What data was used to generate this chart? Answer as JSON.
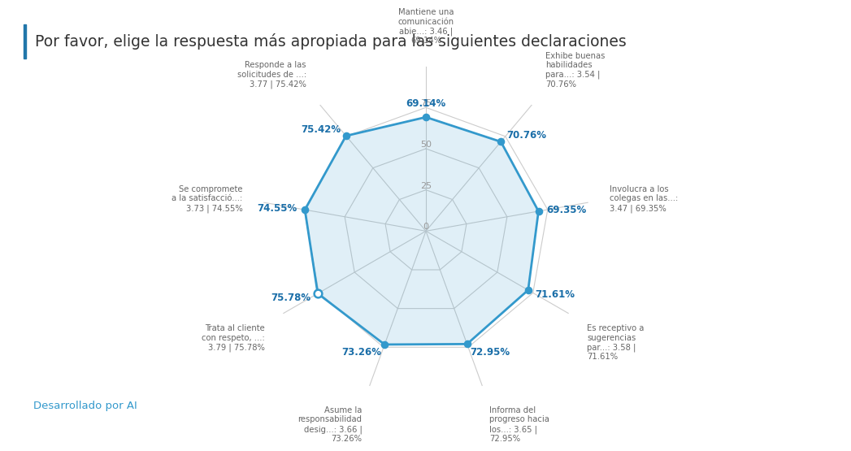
{
  "title": "Por favor, elige la respuesta más apropiada para las siguientes declaraciones",
  "categories": [
    "Mantiene una\ncomunicación\nabie...: 3.46 |\n69.14%",
    "Exhibe buenas\nhabilidades\npara...: 3.54 |\n70.76%",
    "Involucra a los\ncolegas en las...:\n3.47 | 69.35%",
    "Es receptivo a\nsugerencias\npar...: 3.58 |\n71.61%",
    "Informa del\nprogreso hacia\nlos...: 3.65 |\n72.95%",
    "Asume la\nresponsabilidad\ndesig...: 3.66 |\n73.26%",
    "Trata al cliente\ncon respeto, ...:\n3.79 | 75.78%",
    "Se compromete\na la satisfacció...:\n3.73 | 74.55%",
    "Responde a las\nsolicitudes de ...:\n3.77 | 75.42%"
  ],
  "short_labels": [
    "69.14%",
    "70.76%",
    "69.35%",
    "71.61%",
    "72.95%",
    "73.26%",
    "75.78%",
    "74.55%",
    "75.42%"
  ],
  "values": [
    69.14,
    70.76,
    69.35,
    71.61,
    72.95,
    73.26,
    75.78,
    74.55,
    75.42
  ],
  "hollow_index": 6,
  "radar_max": 100,
  "grid_values": [
    0,
    25,
    50,
    75
  ],
  "line_color": "#3399cc",
  "fill_color": "#3399cc",
  "fill_alpha": 0.15,
  "grid_color": "#cccccc",
  "background_color": "#ffffff",
  "title_color": "#333333",
  "label_color": "#666666",
  "value_label_color": "#1a6ea8",
  "footer_text": "Desarrollado por AI",
  "footer_color": "#3399cc"
}
